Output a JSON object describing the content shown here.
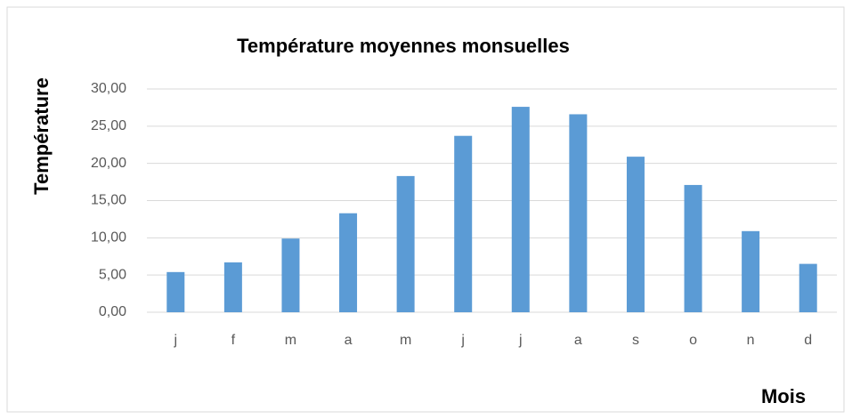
{
  "chart_data": {
    "type": "bar",
    "title": "Température moyennes monsuelles",
    "x_label": "Mois",
    "y_label": "Température",
    "categories": [
      "j",
      "f",
      "m",
      "a",
      "m",
      "j",
      "j",
      "a",
      "s",
      "o",
      "n",
      "d"
    ],
    "values": [
      5.4,
      6.7,
      9.9,
      13.3,
      18.3,
      23.7,
      27.6,
      26.6,
      20.9,
      17.1,
      10.9,
      6.5
    ],
    "color": "#5b9bd5",
    "ylim": [
      0,
      30
    ],
    "yticks": [
      {
        "value": 0,
        "label": "0,00"
      },
      {
        "value": 5,
        "label": "5,00"
      },
      {
        "value": 10,
        "label": "10,00"
      },
      {
        "value": 15,
        "label": "15,00"
      },
      {
        "value": 20,
        "label": "20,00"
      },
      {
        "value": 25,
        "label": "25,00"
      },
      {
        "value": 30,
        "label": "30,00"
      }
    ],
    "grid": true
  }
}
